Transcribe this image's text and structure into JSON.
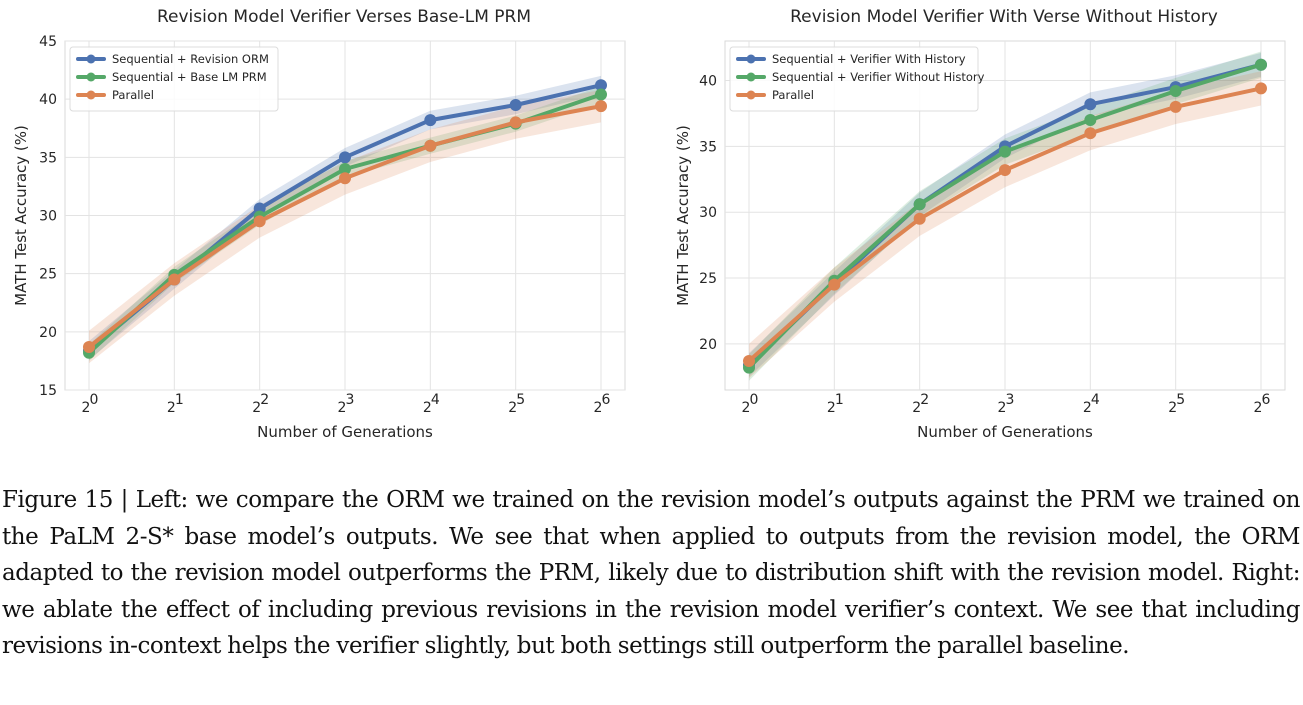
{
  "chart_data": [
    {
      "type": "line",
      "title": "Revision Model Verifier Verses Base-LM PRM",
      "xlabel": "Number of Generations",
      "ylabel": "MATH Test Accuracy (%)",
      "x_scale": "log2",
      "x": [
        1,
        2,
        4,
        8,
        16,
        32,
        64
      ],
      "x_tick_labels": [
        {
          "base": "2",
          "exp": "0"
        },
        {
          "base": "2",
          "exp": "1"
        },
        {
          "base": "2",
          "exp": "2"
        },
        {
          "base": "2",
          "exp": "3"
        },
        {
          "base": "2",
          "exp": "4"
        },
        {
          "base": "2",
          "exp": "5"
        },
        {
          "base": "2",
          "exp": "6"
        }
      ],
      "ylim": [
        15,
        45
      ],
      "yticks": [
        15,
        20,
        25,
        30,
        35,
        40,
        45
      ],
      "grid": true,
      "legend_position": "top-left",
      "series": [
        {
          "name": "Sequential + Revision ORM",
          "color": "#4c72b0",
          "values": [
            18.4,
            24.5,
            30.6,
            35.0,
            38.2,
            39.5,
            41.2
          ],
          "band": 0.8
        },
        {
          "name": "Sequential + Base LM PRM",
          "color": "#55a868",
          "values": [
            18.2,
            24.9,
            29.9,
            34.0,
            36.0,
            37.9,
            40.4
          ],
          "band": 0.7
        },
        {
          "name": "Parallel",
          "color": "#dd8452",
          "values": [
            18.7,
            24.5,
            29.5,
            33.2,
            36.0,
            38.0,
            39.4
          ],
          "band": 1.4
        }
      ]
    },
    {
      "type": "line",
      "title": "Revision Model Verifier With Verse Without History",
      "xlabel": "Number of Generations",
      "ylabel": "MATH Test Accuracy (%)",
      "x_scale": "log2",
      "x": [
        1,
        2,
        4,
        8,
        16,
        32,
        64
      ],
      "x_tick_labels": [
        {
          "base": "2",
          "exp": "0"
        },
        {
          "base": "2",
          "exp": "1"
        },
        {
          "base": "2",
          "exp": "2"
        },
        {
          "base": "2",
          "exp": "3"
        },
        {
          "base": "2",
          "exp": "4"
        },
        {
          "base": "2",
          "exp": "5"
        },
        {
          "base": "2",
          "exp": "6"
        }
      ],
      "ylim": [
        16.5,
        43
      ],
      "yticks": [
        20,
        25,
        30,
        35,
        40
      ],
      "grid": true,
      "legend_position": "top-left",
      "series": [
        {
          "name": "Sequential + Verifier With History",
          "color": "#4c72b0",
          "values": [
            18.4,
            24.6,
            30.6,
            35.0,
            38.2,
            39.5,
            41.2
          ],
          "band": 0.9
        },
        {
          "name": "Sequential + Verifier Without History",
          "color": "#55a868",
          "values": [
            18.2,
            24.8,
            30.6,
            34.6,
            37.0,
            39.2,
            41.2
          ],
          "band": 1.0
        },
        {
          "name": "Parallel",
          "color": "#dd8452",
          "values": [
            18.7,
            24.5,
            29.5,
            33.2,
            36.0,
            38.0,
            39.4
          ],
          "band": 1.3
        }
      ]
    }
  ],
  "caption": "Figure 15 | Left: we compare the ORM we trained on the revision model’s outputs against the PRM we trained on the PaLM 2-S* base model’s outputs. We see that when applied to outputs from the revision model, the ORM adapted to the revision model outperforms the PRM, likely due to distribution shift with the revision model. Right: we ablate the effect of including previous revisions in the revision model verifier’s context. We see that including revisions in-context helps the verifier slightly, but both settings still outperform the parallel baseline."
}
